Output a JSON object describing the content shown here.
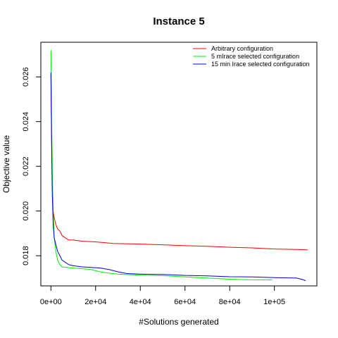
{
  "chart_data": {
    "type": "line",
    "title": "Instance 5",
    "xlabel": "#Solutions generated",
    "ylabel": "Objective value",
    "xlim": [
      -4500,
      119000
    ],
    "ylim": [
      0.01665,
      0.02755
    ],
    "xticks": [
      {
        "value": 0,
        "label": "0e+00"
      },
      {
        "value": 20000,
        "label": "2e+04"
      },
      {
        "value": 40000,
        "label": "4e+04"
      },
      {
        "value": 60000,
        "label": "6e+04"
      },
      {
        "value": 80000,
        "label": "8e+04"
      },
      {
        "value": 100000,
        "label": "1e+05"
      }
    ],
    "yticks": [
      {
        "value": 0.018,
        "label": "0.018"
      },
      {
        "value": 0.02,
        "label": "0.020"
      },
      {
        "value": 0.022,
        "label": "0.022"
      },
      {
        "value": 0.024,
        "label": "0.024"
      },
      {
        "value": 0.026,
        "label": "0.026"
      }
    ],
    "legend_position": "top-right",
    "series": [
      {
        "name": "Arbitrary configuration",
        "color": "#ff0000",
        "points": [
          [
            0,
            0.0261
          ],
          [
            300,
            0.0235
          ],
          [
            600,
            0.0212
          ],
          [
            1000,
            0.02
          ],
          [
            1500,
            0.0197
          ],
          [
            2200,
            0.0194
          ],
          [
            3000,
            0.0192
          ],
          [
            4000,
            0.0191
          ],
          [
            5000,
            0.0189
          ],
          [
            6500,
            0.0188
          ],
          [
            8000,
            0.0187
          ],
          [
            10000,
            0.0187
          ],
          [
            14000,
            0.01865
          ],
          [
            20000,
            0.01862
          ],
          [
            28000,
            0.01855
          ],
          [
            40000,
            0.01852
          ],
          [
            52000,
            0.01848
          ],
          [
            60000,
            0.01845
          ],
          [
            70000,
            0.01842
          ],
          [
            80000,
            0.01838
          ],
          [
            90000,
            0.01835
          ],
          [
            100000,
            0.0183
          ],
          [
            110000,
            0.01828
          ],
          [
            115000,
            0.01826
          ]
        ]
      },
      {
        "name": "5 mIrace selected configuration",
        "color": "#00ee00",
        "points": [
          [
            0,
            0.0272
          ],
          [
            300,
            0.0245
          ],
          [
            600,
            0.022
          ],
          [
            1000,
            0.02
          ],
          [
            1500,
            0.0188
          ],
          [
            2200,
            0.0182
          ],
          [
            3000,
            0.0178
          ],
          [
            4000,
            0.0176
          ],
          [
            5000,
            0.0175
          ],
          [
            7000,
            0.01748
          ],
          [
            10000,
            0.01745
          ],
          [
            14000,
            0.01742
          ],
          [
            18000,
            0.01738
          ],
          [
            22000,
            0.01728
          ],
          [
            26000,
            0.01722
          ],
          [
            30000,
            0.01718
          ],
          [
            36000,
            0.01715
          ],
          [
            44000,
            0.01712
          ],
          [
            52000,
            0.0171
          ],
          [
            60000,
            0.01705
          ],
          [
            70000,
            0.017
          ],
          [
            80000,
            0.01695
          ],
          [
            90000,
            0.01692
          ],
          [
            99000,
            0.01692
          ]
        ]
      },
      {
        "name": "15 min Irace selected configuration",
        "color": "#0000dd",
        "points": [
          [
            0,
            0.0262
          ],
          [
            300,
            0.0232
          ],
          [
            600,
            0.0208
          ],
          [
            1000,
            0.0194
          ],
          [
            1500,
            0.0188
          ],
          [
            2200,
            0.0185
          ],
          [
            3000,
            0.0182
          ],
          [
            4000,
            0.018
          ],
          [
            5000,
            0.0178
          ],
          [
            6500,
            0.0177
          ],
          [
            8000,
            0.0176
          ],
          [
            10000,
            0.01755
          ],
          [
            14000,
            0.0175
          ],
          [
            18000,
            0.01748
          ],
          [
            22000,
            0.01745
          ],
          [
            26000,
            0.01738
          ],
          [
            30000,
            0.01728
          ],
          [
            34000,
            0.0172
          ],
          [
            40000,
            0.01718
          ],
          [
            50000,
            0.01716
          ],
          [
            60000,
            0.01712
          ],
          [
            70000,
            0.0171
          ],
          [
            80000,
            0.01706
          ],
          [
            90000,
            0.01705
          ],
          [
            100000,
            0.01702
          ],
          [
            110000,
            0.017
          ],
          [
            113000,
            0.01692
          ],
          [
            114000,
            0.01688
          ]
        ]
      }
    ]
  }
}
